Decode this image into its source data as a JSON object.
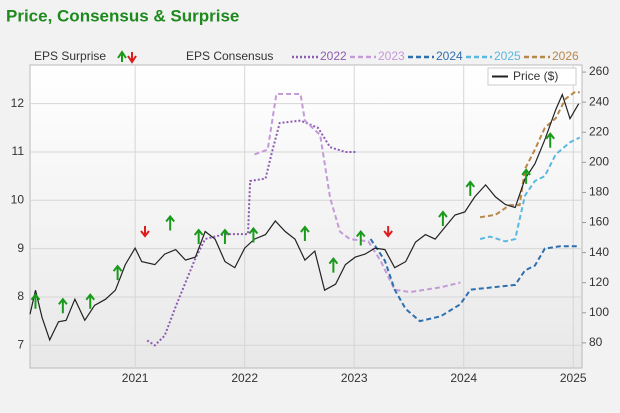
{
  "chart_data": {
    "type": "line",
    "title": "Price, Consensus & Surprise",
    "surprise_label": "EPS Surprise",
    "consensus_label": "EPS Consensus",
    "xlim": [
      2020.04,
      2025.08
    ],
    "xticks": [
      2021,
      2022,
      2023,
      2024,
      2025
    ],
    "ylim": [
      6.53,
      12.8
    ],
    "yticks": [
      7,
      8,
      9,
      10,
      11,
      12
    ],
    "y2lim": [
      63.3,
      264.7
    ],
    "y2ticks": [
      80,
      100,
      120,
      140,
      160,
      180,
      200,
      220,
      240,
      260
    ],
    "grid": true,
    "series": [
      {
        "name": "2022",
        "color": "#8e5bb0",
        "style": "dotted",
        "axis": "y",
        "x": [
          2021.11,
          2021.18,
          2021.27,
          2021.37,
          2021.46,
          2021.55,
          2021.64,
          2021.82,
          2022.03,
          2022.05,
          2022.19,
          2022.25,
          2022.32,
          2022.51,
          2022.67,
          2022.78,
          2022.92,
          2023.01
        ],
        "values": [
          7.1,
          7.0,
          7.2,
          7.8,
          8.3,
          8.8,
          9.2,
          9.3,
          9.3,
          10.4,
          10.45,
          11.0,
          11.6,
          11.65,
          11.5,
          11.1,
          11.0,
          11.0
        ]
      },
      {
        "name": "2023",
        "color": "#c59ad8",
        "style": "dashed",
        "axis": "y",
        "x": [
          2022.09,
          2022.21,
          2022.29,
          2022.51,
          2022.55,
          2022.69,
          2022.78,
          2022.87,
          2022.96,
          2023.13,
          2023.24,
          2023.37,
          2023.51,
          2023.79,
          2023.97
        ],
        "values": [
          10.95,
          11.05,
          12.2,
          12.2,
          11.65,
          11.35,
          10.05,
          9.35,
          9.2,
          9.15,
          8.75,
          8.15,
          8.1,
          8.2,
          8.3
        ]
      },
      {
        "name": "2024",
        "color": "#2e6fb0",
        "style": "dashed",
        "axis": "y",
        "x": [
          2023.15,
          2023.28,
          2023.37,
          2023.47,
          2023.6,
          2023.79,
          2023.97,
          2024.06,
          2024.47,
          2024.56,
          2024.65,
          2024.74,
          2024.88,
          2025.06
        ],
        "values": [
          9.2,
          8.75,
          8.15,
          7.75,
          7.5,
          7.6,
          7.85,
          8.15,
          8.25,
          8.55,
          8.65,
          9.0,
          9.05,
          9.05
        ]
      },
      {
        "name": "2025",
        "color": "#5bb8e0",
        "style": "dashed",
        "axis": "y",
        "x": [
          2024.15,
          2024.24,
          2024.38,
          2024.47,
          2024.56,
          2024.65,
          2024.74,
          2024.84,
          2024.97,
          2025.06
        ],
        "values": [
          9.2,
          9.25,
          9.15,
          9.2,
          10.1,
          10.4,
          10.5,
          10.95,
          11.2,
          11.3
        ]
      },
      {
        "name": "2026",
        "color": "#b8874a",
        "style": "dashed",
        "axis": "y",
        "x": [
          2024.15,
          2024.29,
          2024.42,
          2024.51,
          2024.56,
          2024.65,
          2024.74,
          2024.84,
          2024.93,
          2025.02,
          2025.06
        ],
        "values": [
          9.65,
          9.7,
          9.9,
          9.9,
          10.65,
          11.05,
          11.5,
          11.7,
          12.1,
          12.25,
          12.23
        ]
      },
      {
        "name": "Price ($)",
        "color": "#222222",
        "style": "solid",
        "axis": "y2",
        "x": [
          2020.04,
          2020.09,
          2020.15,
          2020.22,
          2020.3,
          2020.37,
          2020.45,
          2020.54,
          2020.63,
          2020.73,
          2020.82,
          2020.91,
          2021.0,
          2021.06,
          2021.18,
          2021.27,
          2021.37,
          2021.46,
          2021.55,
          2021.64,
          2021.73,
          2021.82,
          2021.91,
          2022.0,
          2022.09,
          2022.19,
          2022.28,
          2022.37,
          2022.46,
          2022.55,
          2022.64,
          2022.73,
          2022.83,
          2022.92,
          2023.01,
          2023.1,
          2023.19,
          2023.28,
          2023.37,
          2023.47,
          2023.56,
          2023.65,
          2023.74,
          2023.83,
          2023.92,
          2024.01,
          2024.1,
          2024.2,
          2024.29,
          2024.38,
          2024.47,
          2024.56,
          2024.65,
          2024.74,
          2024.84,
          2024.9,
          2024.97,
          2025.05
        ],
        "values": [
          99,
          115,
          97,
          82,
          94,
          95,
          109,
          95,
          105,
          109,
          115,
          132,
          143,
          134,
          132,
          139,
          142,
          135,
          137,
          154,
          149,
          134,
          130,
          143,
          149,
          152,
          161,
          154,
          149,
          135,
          141,
          115,
          119,
          132,
          137,
          139,
          143,
          142,
          130,
          134,
          147,
          152,
          149,
          157,
          165,
          167,
          177,
          185,
          177,
          172,
          170,
          189,
          199,
          215,
          235,
          245,
          229,
          239
        ]
      }
    ],
    "surprises": [
      {
        "marker": "up",
        "color": "#1a9a1a",
        "axis": "y2",
        "x": [
          2020.09,
          2020.34,
          2020.59,
          2020.84,
          2021.32,
          2021.58,
          2021.82,
          2022.08,
          2022.55,
          2022.81,
          2023.06,
          2023.81,
          2024.06,
          2024.57,
          2024.79
        ],
        "values": [
          112,
          109,
          112,
          131,
          164,
          155,
          155,
          156,
          157,
          136,
          154,
          167,
          187,
          195,
          219
        ]
      },
      {
        "marker": "down",
        "color": "#e01b1b",
        "axis": "y2",
        "x": [
          2021.09,
          2023.31
        ],
        "values": [
          151,
          151
        ]
      }
    ]
  }
}
